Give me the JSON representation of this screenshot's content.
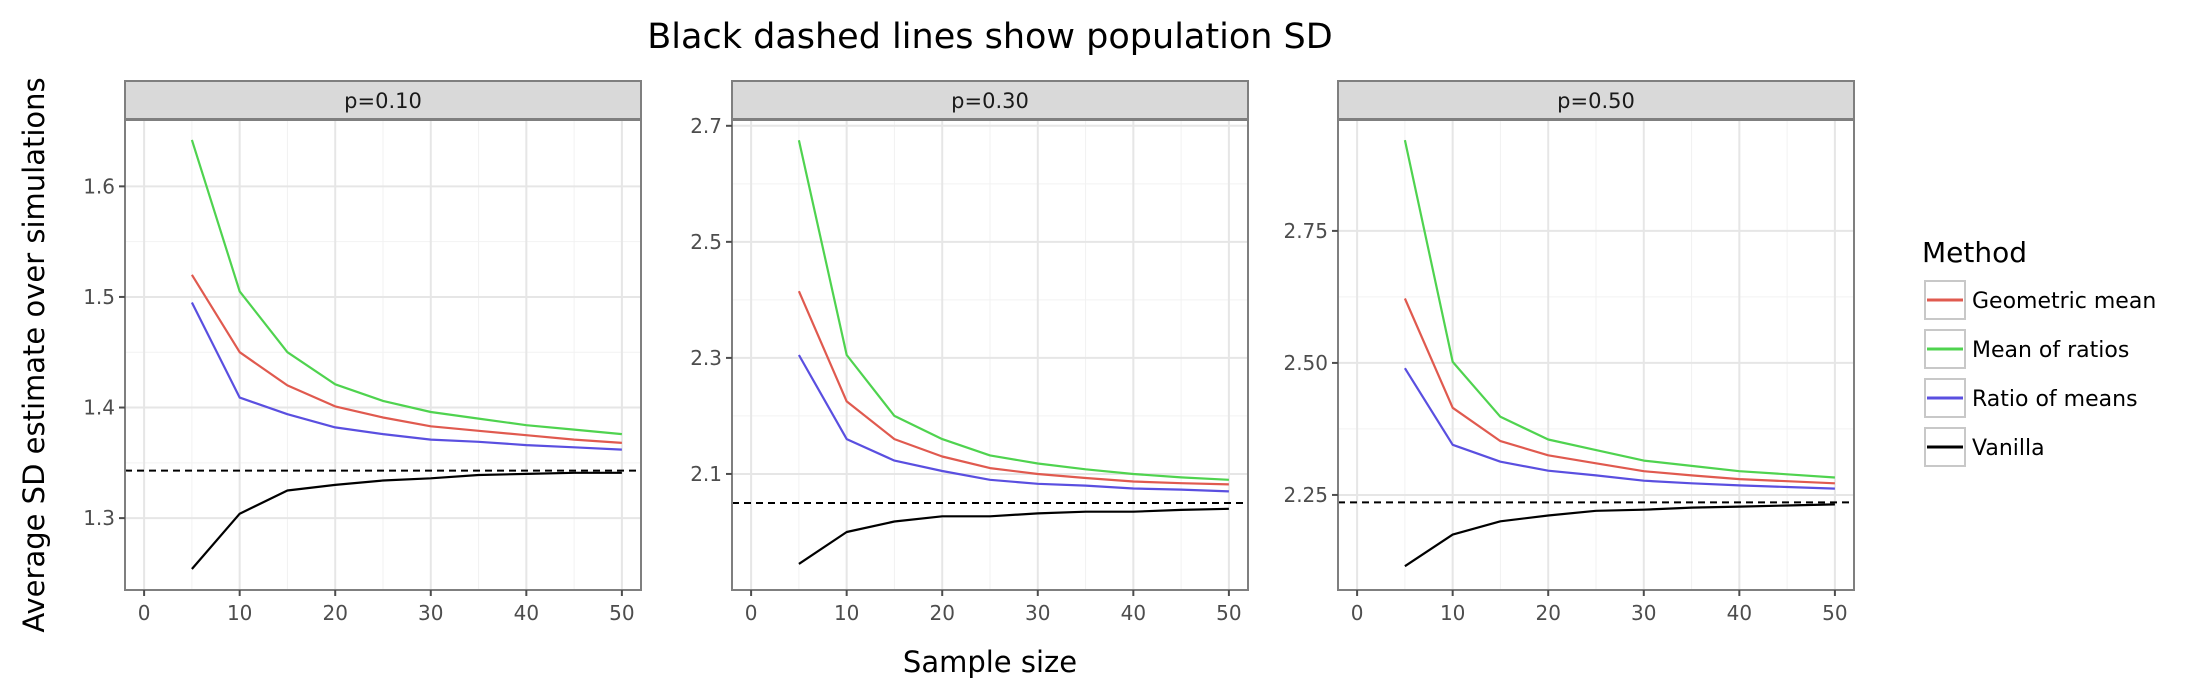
{
  "chart_data": {
    "type": "line",
    "title": "Black dashed lines show population SD",
    "xlabel": "Sample size",
    "ylabel": "Average SD estimate over simulations",
    "legend": {
      "title": "Method",
      "placement": "right"
    },
    "xlim": [
      -2,
      52
    ],
    "xticks": [
      0,
      10,
      20,
      30,
      40,
      50
    ],
    "x": [
      5,
      10,
      15,
      20,
      25,
      30,
      35,
      40,
      45,
      50
    ],
    "grid": true,
    "series_colors": {
      "Geometric mean": "#E05A4F",
      "Mean of ratios": "#4FD34F",
      "Ratio of means": "#5A4FE0",
      "Vanilla": "#000000"
    },
    "panels": [
      {
        "label": "p=0.10",
        "ylim": [
          1.235,
          1.66
        ],
        "yticks": [
          1.3,
          1.4,
          1.5,
          1.6
        ],
        "ytick_labels": [
          "1.3",
          "1.4",
          "1.5",
          "1.6"
        ],
        "population_sd": 1.343,
        "series": [
          {
            "name": "Geometric mean",
            "values": [
              1.52,
              1.45,
              1.42,
              1.401,
              1.391,
              1.383,
              1.379,
              1.375,
              1.371,
              1.368
            ]
          },
          {
            "name": "Mean of ratios",
            "values": [
              1.642,
              1.505,
              1.45,
              1.421,
              1.406,
              1.396,
              1.39,
              1.384,
              1.38,
              1.376
            ]
          },
          {
            "name": "Ratio of means",
            "values": [
              1.495,
              1.409,
              1.394,
              1.382,
              1.376,
              1.371,
              1.369,
              1.366,
              1.364,
              1.362
            ]
          },
          {
            "name": "Vanilla",
            "values": [
              1.254,
              1.304,
              1.325,
              1.33,
              1.334,
              1.336,
              1.339,
              1.34,
              1.341,
              1.341
            ]
          }
        ]
      },
      {
        "label": "p=0.30",
        "ylim": [
          1.9,
          2.71
        ],
        "yticks": [
          2.1,
          2.3,
          2.5,
          2.7
        ],
        "ytick_labels": [
          "2.1",
          "2.3",
          "2.5",
          "2.7"
        ],
        "population_sd": 2.05,
        "series": [
          {
            "name": "Geometric mean",
            "values": [
              2.415,
              2.225,
              2.16,
              2.13,
              2.11,
              2.1,
              2.093,
              2.087,
              2.084,
              2.082
            ]
          },
          {
            "name": "Mean of ratios",
            "values": [
              2.675,
              2.305,
              2.2,
              2.16,
              2.132,
              2.118,
              2.108,
              2.1,
              2.094,
              2.09
            ]
          },
          {
            "name": "Ratio of means",
            "values": [
              2.305,
              2.16,
              2.123,
              2.105,
              2.09,
              2.083,
              2.08,
              2.075,
              2.073,
              2.07
            ]
          },
          {
            "name": "Vanilla",
            "values": [
              1.945,
              2.0,
              2.018,
              2.027,
              2.027,
              2.032,
              2.035,
              2.035,
              2.038,
              2.04
            ]
          }
        ]
      },
      {
        "label": "p=0.50",
        "ylim": [
          2.07,
          2.96
        ],
        "yticks": [
          2.25,
          2.5,
          2.75
        ],
        "ytick_labels": [
          "2.25",
          "2.50",
          "2.75"
        ],
        "population_sd": 2.236,
        "series": [
          {
            "name": "Geometric mean",
            "values": [
              2.622,
              2.415,
              2.352,
              2.325,
              2.31,
              2.295,
              2.287,
              2.28,
              2.276,
              2.272
            ]
          },
          {
            "name": "Mean of ratios",
            "values": [
              2.922,
              2.502,
              2.398,
              2.355,
              2.335,
              2.315,
              2.305,
              2.295,
              2.289,
              2.283
            ]
          },
          {
            "name": "Ratio of means",
            "values": [
              2.49,
              2.345,
              2.313,
              2.296,
              2.287,
              2.277,
              2.272,
              2.268,
              2.265,
              2.262
            ]
          },
          {
            "name": "Vanilla",
            "values": [
              2.115,
              2.175,
              2.2,
              2.211,
              2.22,
              2.222,
              2.226,
              2.228,
              2.23,
              2.232
            ]
          }
        ]
      }
    ]
  }
}
